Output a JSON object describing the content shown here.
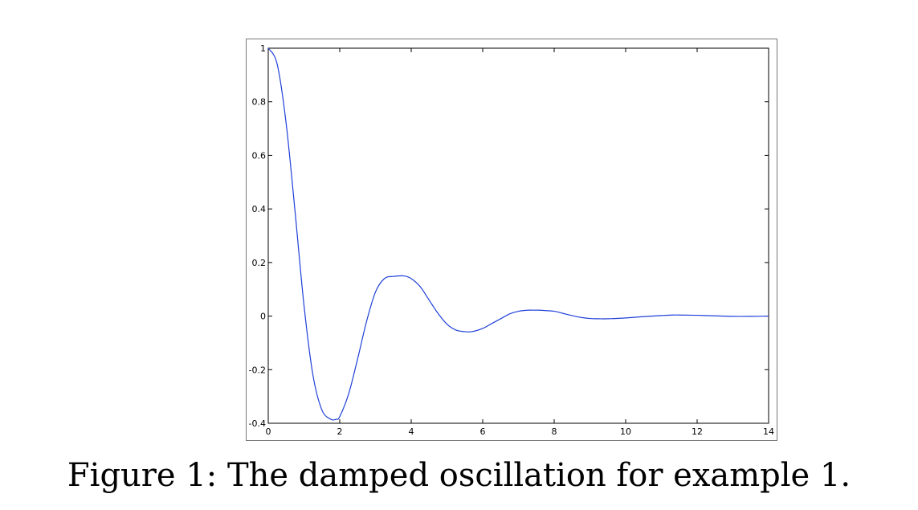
{
  "figure": {
    "caption": "Figure 1: The damped oscillation for example 1."
  },
  "colors": {
    "line": "#1f3fd8",
    "axes": "#000000",
    "frame": "#777777"
  },
  "chart_data": {
    "type": "line",
    "title": "",
    "xlabel": "",
    "ylabel": "",
    "xlim": [
      0,
      14
    ],
    "ylim": [
      -0.4,
      1
    ],
    "xticks": [
      0,
      2,
      4,
      6,
      8,
      10,
      12,
      14
    ],
    "xtick_labels": [
      "0",
      "2",
      "4",
      "6",
      "8",
      "10",
      "12",
      "14"
    ],
    "yticks": [
      -0.4,
      -0.2,
      0,
      0.2,
      0.4,
      0.6,
      0.8,
      1
    ],
    "ytick_labels": [
      "-0.4",
      "-0.2",
      "0",
      "0.2",
      "0.4",
      "0.6",
      "0.8",
      "1"
    ],
    "grid": false,
    "series": [
      {
        "x": [
          0,
          0.25,
          0.5,
          0.75,
          1.0,
          1.25,
          1.5,
          1.75,
          1.9,
          2.0,
          2.25,
          2.5,
          2.75,
          3.0,
          3.25,
          3.5,
          3.8,
          4.0,
          4.25,
          4.5,
          4.75,
          5.0,
          5.25,
          5.5,
          5.7,
          6.0,
          6.25,
          6.5,
          6.75,
          7.0,
          7.25,
          7.5,
          7.6,
          8.0,
          8.25,
          8.5,
          8.75,
          9.0,
          9.25,
          9.5,
          10.0,
          10.5,
          11.0,
          11.3,
          11.5,
          12.0,
          12.5,
          13.0,
          13.5,
          14.0
        ],
        "y": [
          1.0,
          0.94,
          0.72,
          0.39,
          0.04,
          -0.22,
          -0.35,
          -0.385,
          -0.385,
          -0.375,
          -0.29,
          -0.16,
          -0.02,
          0.09,
          0.14,
          0.148,
          0.15,
          0.14,
          0.11,
          0.06,
          0.01,
          -0.03,
          -0.052,
          -0.058,
          -0.058,
          -0.046,
          -0.028,
          -0.01,
          0.008,
          0.018,
          0.022,
          0.022,
          0.022,
          0.018,
          0.01,
          0.002,
          -0.005,
          -0.009,
          -0.01,
          -0.01,
          -0.007,
          -0.002,
          0.002,
          0.004,
          0.004,
          0.003,
          0.001,
          -0.001,
          -0.001,
          0.0
        ]
      }
    ]
  }
}
